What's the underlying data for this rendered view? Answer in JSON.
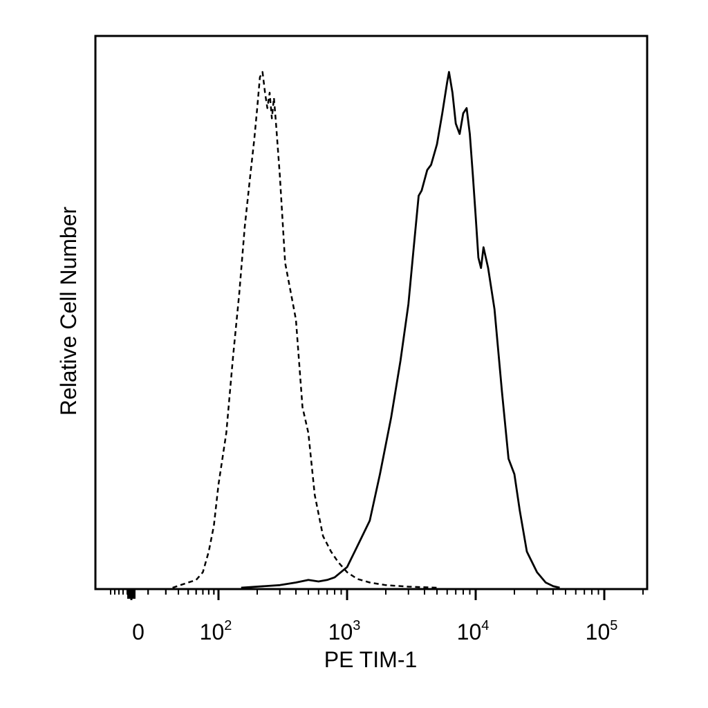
{
  "chart_data": {
    "type": "line",
    "title": "",
    "xlabel": "PE TIM-1",
    "ylabel": "Relative Cell Number",
    "x_scale": "biexponential",
    "xlim": [
      -60,
      250000
    ],
    "ylim": [
      0,
      1
    ],
    "grid": false,
    "legend": "none",
    "x_ticks": [
      {
        "value": 0,
        "base": "0",
        "exp": ""
      },
      {
        "value": 100,
        "base": "10",
        "exp": "2"
      },
      {
        "value": 1000,
        "base": "10",
        "exp": "3"
      },
      {
        "value": 10000,
        "base": "10",
        "exp": "4"
      },
      {
        "value": 100000,
        "base": "10",
        "exp": "5"
      }
    ],
    "series": [
      {
        "style": "dashed",
        "color": "#000000",
        "points": [
          [
            35,
            0.0
          ],
          [
            50,
            0.01
          ],
          [
            60,
            0.015
          ],
          [
            70,
            0.03
          ],
          [
            80,
            0.07
          ],
          [
            90,
            0.12
          ],
          [
            100,
            0.2
          ],
          [
            115,
            0.3
          ],
          [
            130,
            0.45
          ],
          [
            145,
            0.57
          ],
          [
            160,
            0.7
          ],
          [
            175,
            0.79
          ],
          [
            190,
            0.87
          ],
          [
            200,
            0.93
          ],
          [
            210,
            0.99
          ],
          [
            220,
            1.0
          ],
          [
            230,
            0.96
          ],
          [
            240,
            0.93
          ],
          [
            250,
            0.96
          ],
          [
            260,
            0.91
          ],
          [
            270,
            0.95
          ],
          [
            280,
            0.9
          ],
          [
            300,
            0.8
          ],
          [
            330,
            0.63
          ],
          [
            360,
            0.58
          ],
          [
            400,
            0.52
          ],
          [
            450,
            0.35
          ],
          [
            500,
            0.3
          ],
          [
            560,
            0.18
          ],
          [
            650,
            0.1
          ],
          [
            750,
            0.07
          ],
          [
            850,
            0.05
          ],
          [
            1000,
            0.03
          ],
          [
            1200,
            0.017
          ],
          [
            1500,
            0.01
          ],
          [
            2000,
            0.005
          ],
          [
            3000,
            0.002
          ],
          [
            5000,
            0.0
          ]
        ]
      },
      {
        "style": "solid",
        "color": "#000000",
        "points": [
          [
            150,
            0.0
          ],
          [
            300,
            0.005
          ],
          [
            400,
            0.01
          ],
          [
            500,
            0.015
          ],
          [
            600,
            0.012
          ],
          [
            700,
            0.015
          ],
          [
            800,
            0.02
          ],
          [
            1000,
            0.04
          ],
          [
            1200,
            0.08
          ],
          [
            1500,
            0.13
          ],
          [
            1800,
            0.22
          ],
          [
            2200,
            0.33
          ],
          [
            2600,
            0.44
          ],
          [
            3000,
            0.55
          ],
          [
            3300,
            0.66
          ],
          [
            3600,
            0.76
          ],
          [
            3800,
            0.77
          ],
          [
            4200,
            0.81
          ],
          [
            4500,
            0.82
          ],
          [
            5000,
            0.86
          ],
          [
            5500,
            0.92
          ],
          [
            6000,
            0.98
          ],
          [
            6200,
            1.0
          ],
          [
            6600,
            0.96
          ],
          [
            7000,
            0.9
          ],
          [
            7500,
            0.88
          ],
          [
            8000,
            0.92
          ],
          [
            8500,
            0.93
          ],
          [
            9000,
            0.88
          ],
          [
            9500,
            0.8
          ],
          [
            10000,
            0.72
          ],
          [
            10500,
            0.64
          ],
          [
            11000,
            0.62
          ],
          [
            11500,
            0.66
          ],
          [
            12500,
            0.62
          ],
          [
            14000,
            0.54
          ],
          [
            16000,
            0.38
          ],
          [
            18000,
            0.25
          ],
          [
            20000,
            0.22
          ],
          [
            22000,
            0.15
          ],
          [
            25000,
            0.07
          ],
          [
            30000,
            0.03
          ],
          [
            35000,
            0.01
          ],
          [
            40000,
            0.003
          ],
          [
            45000,
            0.0
          ]
        ]
      }
    ]
  }
}
